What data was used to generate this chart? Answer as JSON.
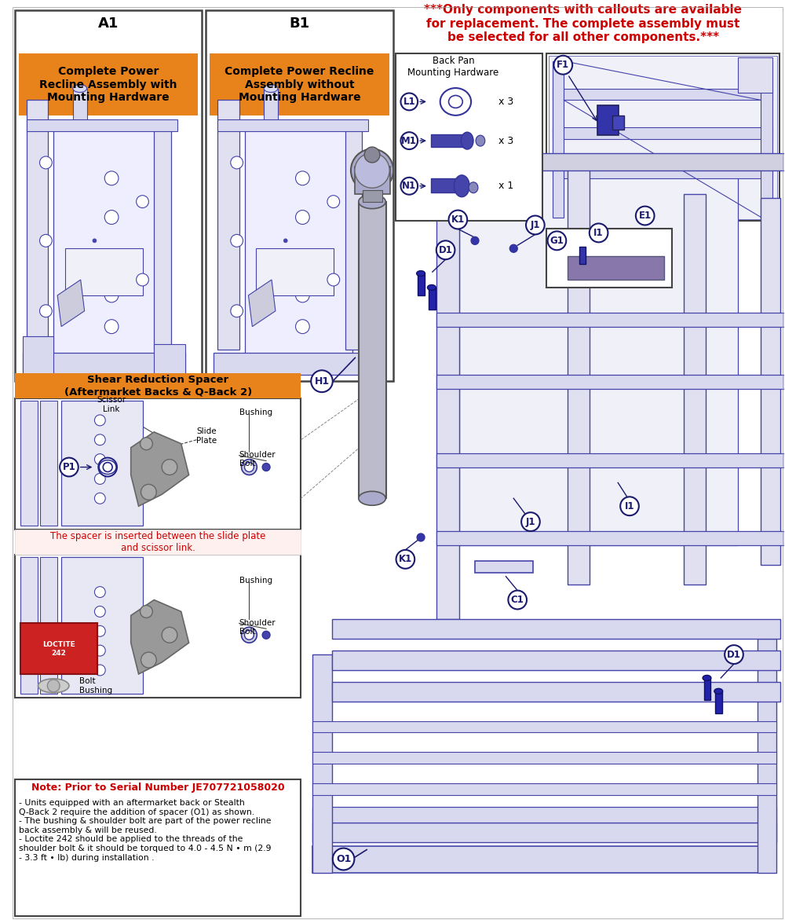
{
  "bg_color": "#ffffff",
  "orange": "#E8821A",
  "red": "#CC0000",
  "dark_blue": "#1a1a6e",
  "med_blue": "#3333aa",
  "light_blue_fill": "#e8e8f5",
  "mid_blue_fill": "#d0d0e8",
  "border_color": "#444444",
  "gray_fill": "#aaaaaa",
  "light_gray": "#cccccc",
  "box_A1_label": "A1",
  "box_A1_text": "Complete Power\nRecline Assembly with\nMounting Hardware",
  "box_B1_label": "B1",
  "box_B1_text": "Complete Power Recline\nAssembly without\nMounting Hardware",
  "warning_text": "***Only components with callouts are available\nfor replacement. The complete assembly must\nbe selected for all other components.***",
  "back_pan_title": "Back Pan\nMounting Hardware",
  "L1_qty": "x 3",
  "M1_qty": "x 3",
  "N1_qty": "x 1",
  "shear_title": "Shear Reduction Spacer\n(Aftermarket Backs & Q-Back 2)",
  "shear_red_text": "The spacer is inserted between the slide plate\nand scissor link.",
  "note_title": "Note: Prior to Serial Number JE707721058020",
  "note_text": "- Units equipped with an aftermarket back or Stealth\nQ-Back 2 require the addition of spacer (O1) as shown.\n- The bushing & shoulder bolt are part of the power recline\nback assembly & will be reused.\n- Loctite 242 should be applied to the threads of the\nshoulder bolt & it should be torqued to 4.0 - 4.5 N • m (2.9\n- 3.3 ft • lb) during installation .",
  "scissor_link_label": "Scissor\nLink",
  "bushing_label": "Bushing",
  "slide_plate_label": "Slide\nPlate",
  "shoulder_bolt_label": "Shoulder\nBolt",
  "bolt_bushing_label": "Bolt\nBushing"
}
